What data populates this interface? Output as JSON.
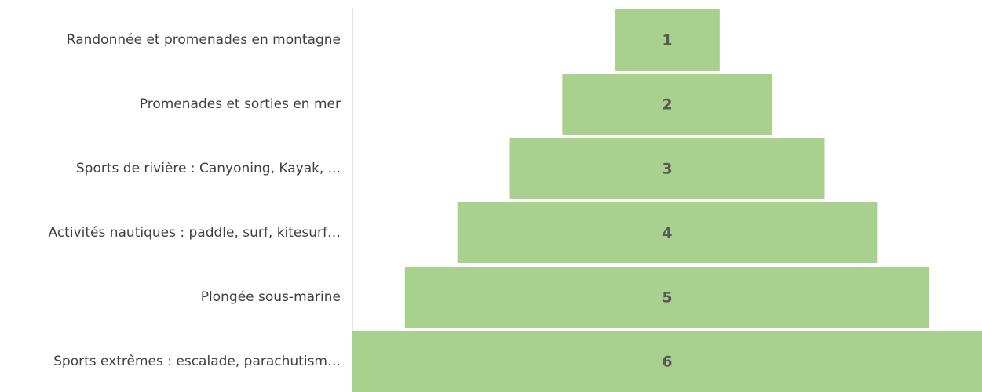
{
  "chart_data": {
    "type": "funnel",
    "categories": [
      "Randonnée et promenades en montagne",
      "Promenades et sorties en mer",
      "Sports de rivière : Canyoning, Kayak, ...",
      "Activités nautiques : paddle, surf, kitesurf…",
      "Plongée sous-marine",
      "Sports extrêmes : escalade, parachutism…"
    ],
    "values": [
      1,
      2,
      3,
      4,
      5,
      6
    ],
    "color": "#a9d18e"
  }
}
